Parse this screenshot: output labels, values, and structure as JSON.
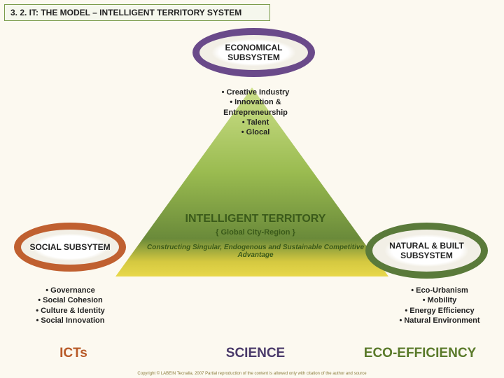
{
  "header": {
    "title": "3. 2. IT: THE MODEL – INTELLIGENT TERRITORY SYSTEM"
  },
  "triangle": {
    "green_dark": "#6a8a3a",
    "green_mid": "#8aaa4a",
    "green_light": "#b5cc66",
    "yellow": "#e8d84a"
  },
  "econ": {
    "label": "ECONOMICAL SUBSYSTEM",
    "border_color": "#6a4a8a",
    "bullets": "• Creative Industry\n• Innovation & Entrepreneurship\n• Talent\n• Glocal"
  },
  "social": {
    "label": "SOCIAL SUBSYTEM",
    "border_color": "#c06030",
    "bullets": "• Governance\n• Social Cohesion\n• Culture & Identity\n• Social Innovation"
  },
  "natural": {
    "label": "NATURAL & BUILT SUBSYSTEM",
    "border_color": "#5a7a3a",
    "bullets": "• Eco-Urbanism\n• Mobility\n• Energy Efficiency\n• Natural Environment"
  },
  "center": {
    "title": "INTELLIGENT TERRITORY",
    "sub": "{ Global City-Region }",
    "tag": "Constructing Singular, Endogenous and Sustainable Competitive Advantage"
  },
  "bottom": {
    "ict": "ICTs",
    "science": "SCIENCE",
    "eco": "ECO-EFFICIENCY"
  },
  "copyright": "Copyright © LABEIN Tecnalia, 2007 Partial reproduction of the content is allowed only with citation of the author and source"
}
